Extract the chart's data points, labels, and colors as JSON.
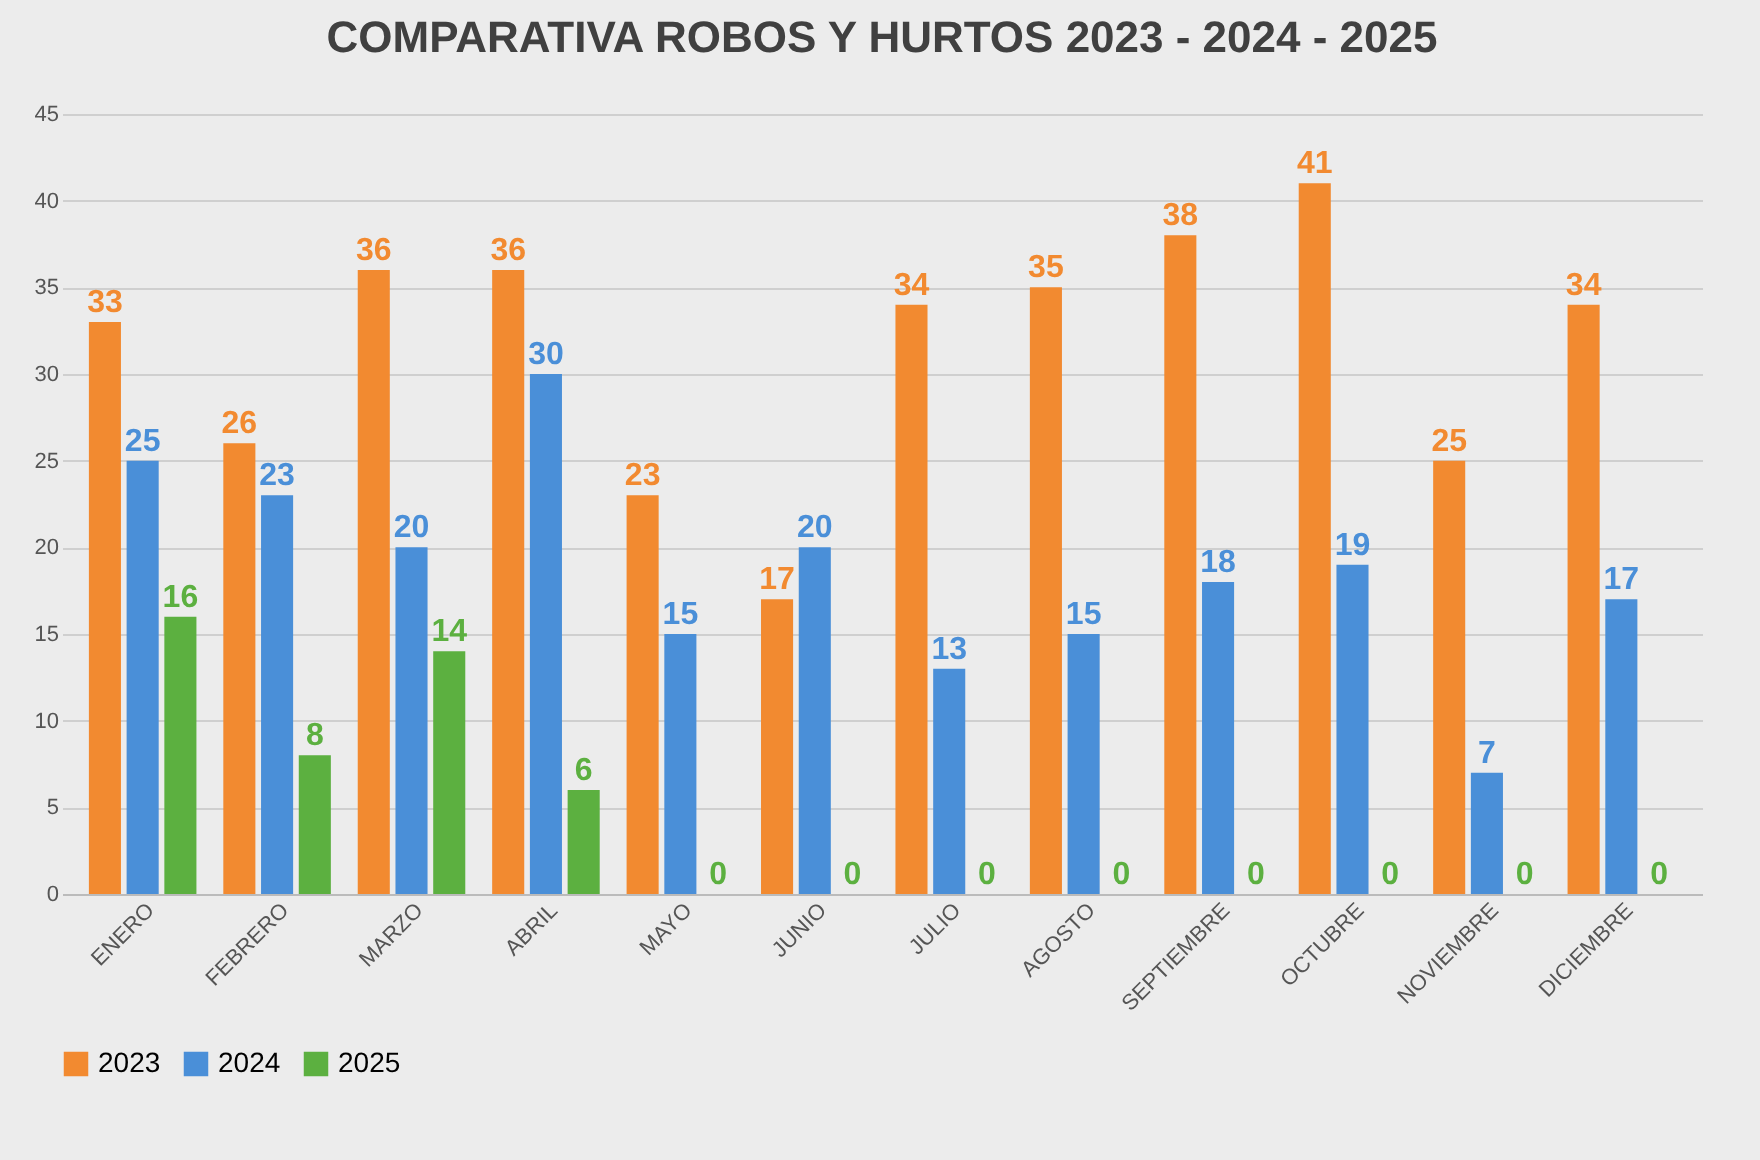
{
  "chart_data": {
    "type": "bar",
    "title": "COMPARATIVA ROBOS Y HURTOS 2023 - 2024 - 2025",
    "categories": [
      "ENERO",
      "FEBRERO",
      "MARZO",
      "ABRIL",
      "MAYO",
      "JUNIO",
      "JULIO",
      "AGOSTO",
      "SEPTIEMBRE",
      "OCTUBRE",
      "NOVIEMBRE",
      "DICIEMBRE"
    ],
    "series": [
      {
        "name": "2023",
        "color": "#f28a30",
        "values": [
          33,
          26,
          36,
          36,
          23,
          17,
          34,
          35,
          38,
          41,
          25,
          34
        ]
      },
      {
        "name": "2024",
        "color": "#4a8fd8",
        "values": [
          25,
          23,
          20,
          30,
          15,
          20,
          13,
          15,
          18,
          19,
          7,
          17
        ]
      },
      {
        "name": "2025",
        "color": "#5cb040",
        "values": [
          16,
          8,
          14,
          6,
          0,
          0,
          0,
          0,
          0,
          0,
          0,
          0
        ]
      }
    ],
    "ylim": [
      0,
      45
    ],
    "yticks": [
      0,
      5,
      10,
      15,
      20,
      25,
      30,
      35,
      40,
      45
    ],
    "grid": "y",
    "legend": "bottom",
    "data_labels": true
  }
}
